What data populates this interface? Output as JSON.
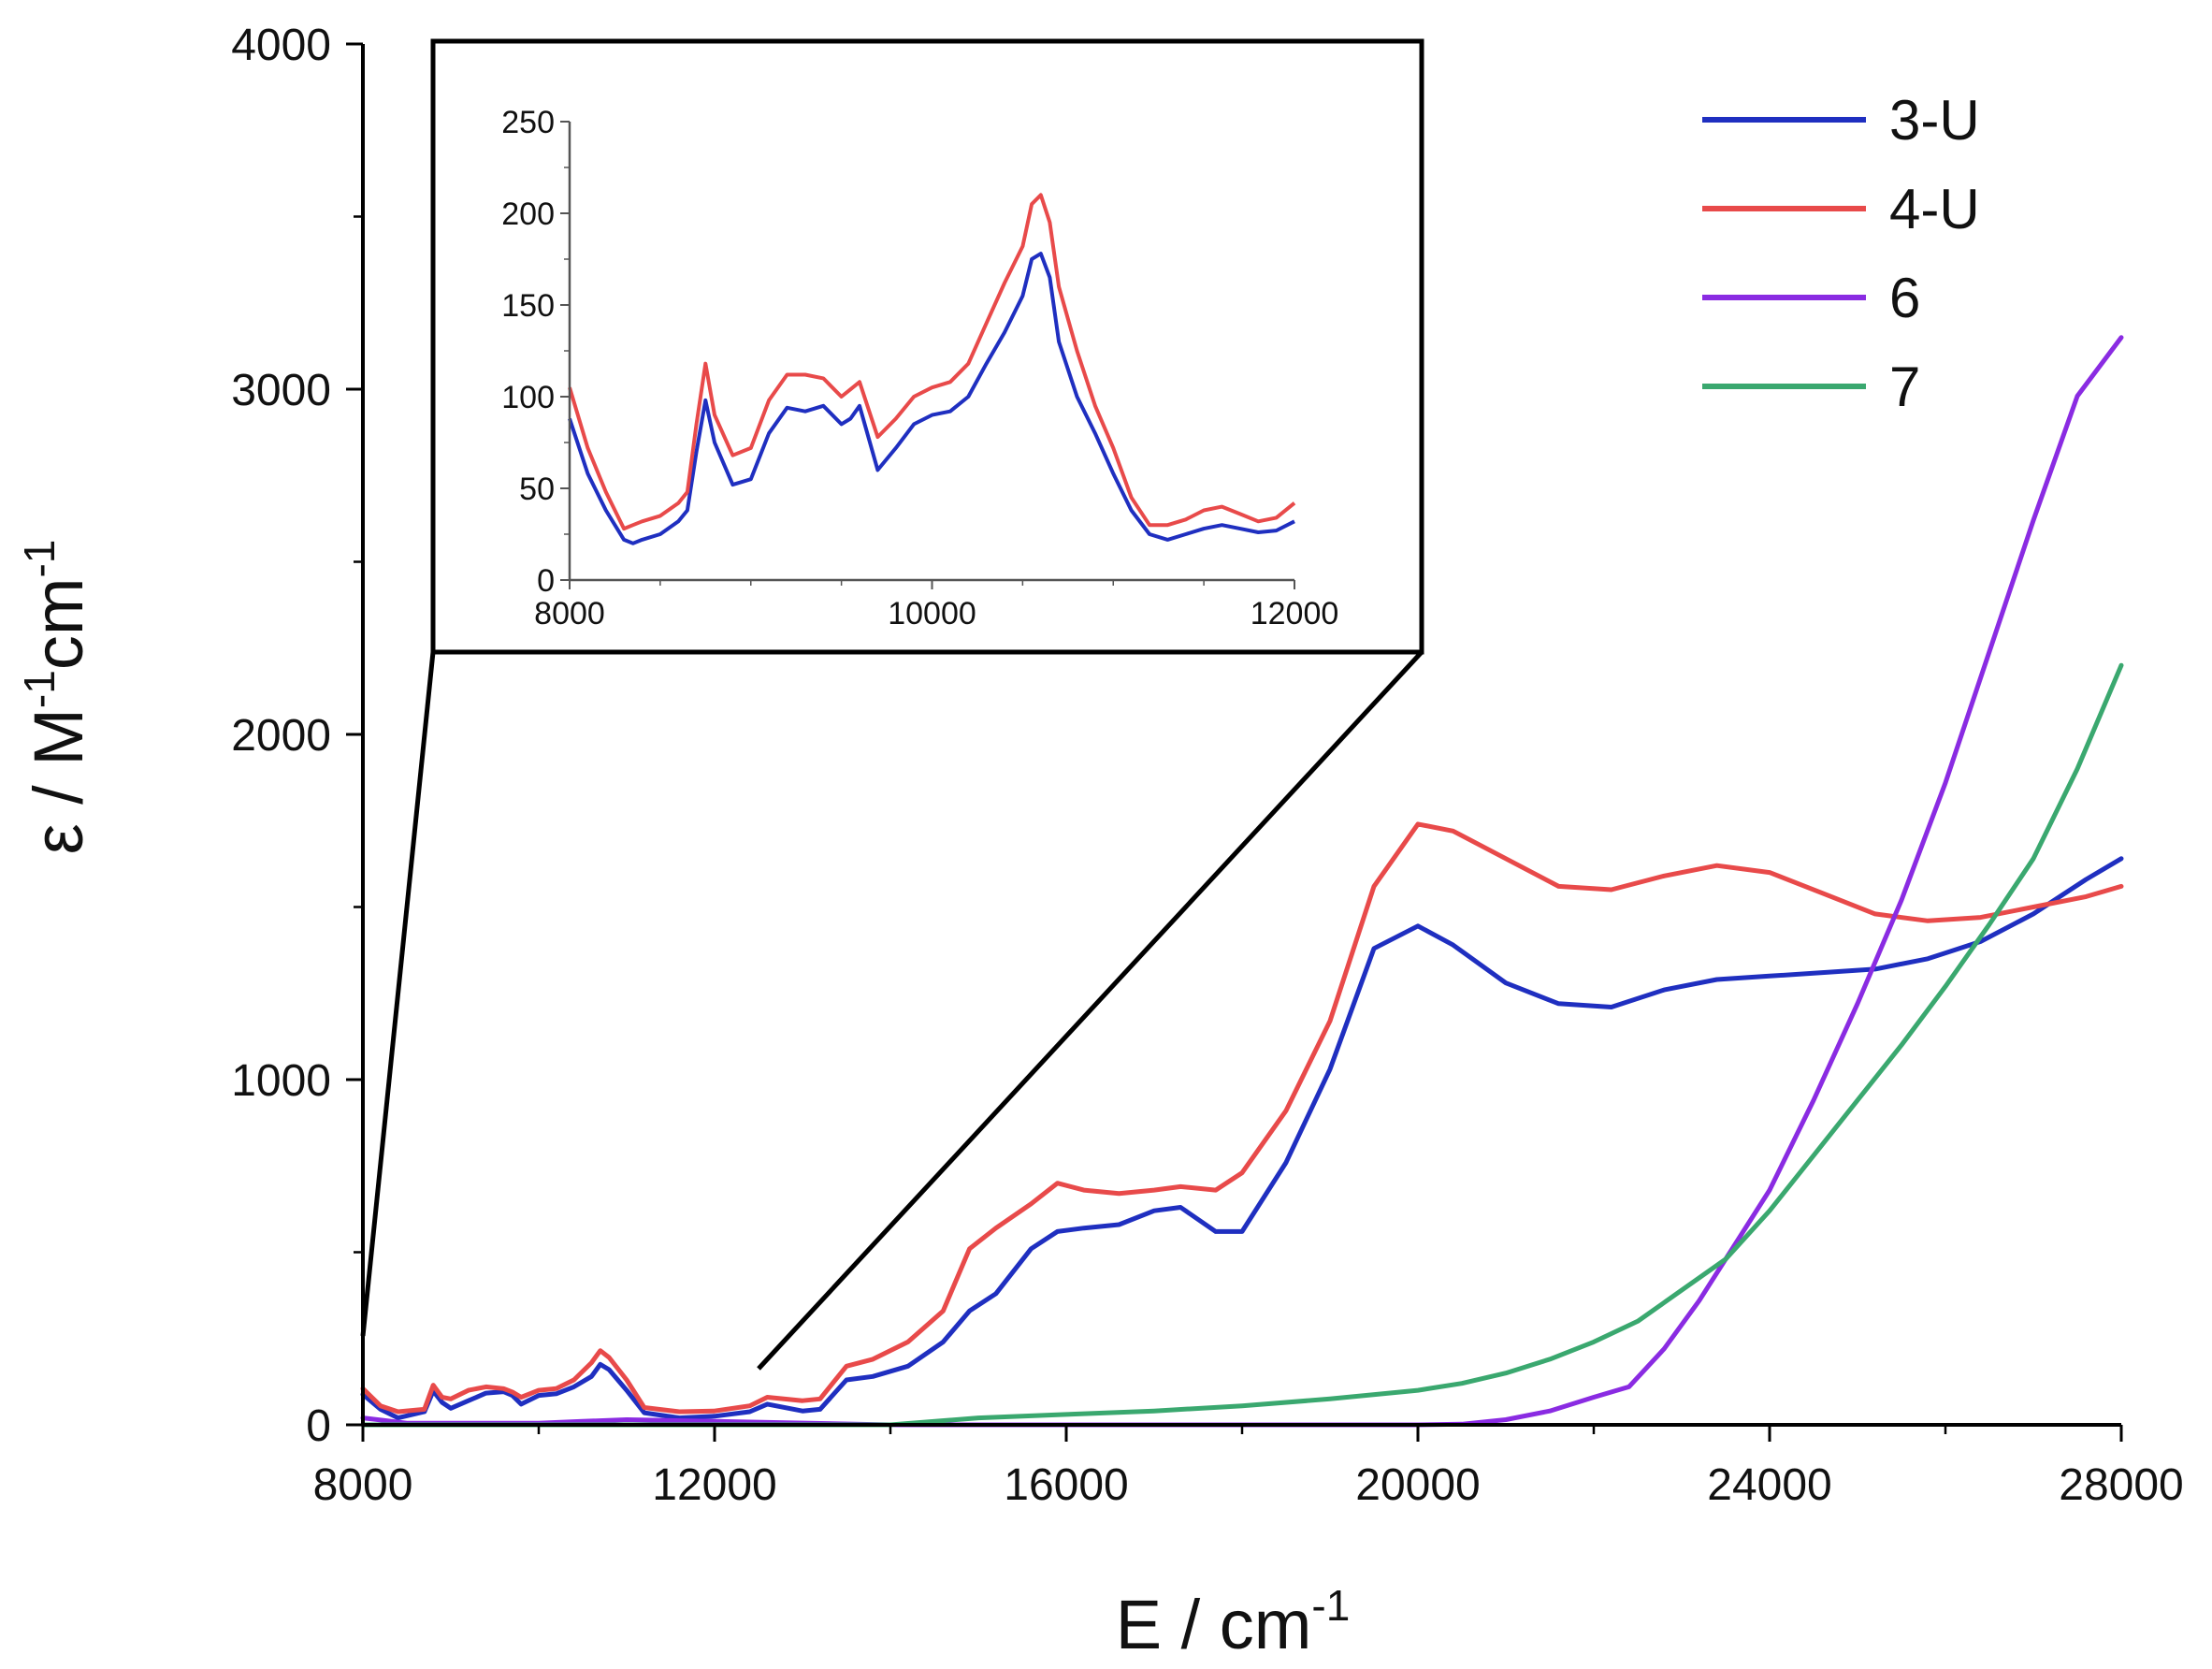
{
  "chart_data": [
    {
      "type": "line",
      "xlabel": "E / cm",
      "xlabel_sup": "-1",
      "ylabel_parts": [
        "ε / M",
        "-1",
        "cm",
        "-1"
      ],
      "xlim": [
        8000,
        28000
      ],
      "ylim": [
        0,
        4000
      ],
      "xticks": [
        8000,
        12000,
        16000,
        20000,
        24000,
        28000
      ],
      "yticks": [
        0,
        1000,
        2000,
        3000,
        4000
      ],
      "legend_position": "top-right",
      "series": [
        {
          "name": "3-U",
          "color": "#1f2fc0",
          "x": [
            8000,
            8200,
            8400,
            8700,
            8800,
            8900,
            9000,
            9200,
            9400,
            9600,
            9700,
            9800,
            10000,
            10200,
            10400,
            10600,
            10700,
            10800,
            11000,
            11200,
            11600,
            12000,
            12400,
            12600,
            13000,
            13200,
            13500,
            13800,
            14200,
            14600,
            14900,
            15200,
            15600,
            15900,
            16200,
            16600,
            17000,
            17300,
            17700,
            18000,
            18500,
            19000,
            19500,
            20000,
            20400,
            21000,
            21600,
            22200,
            22800,
            23400,
            24000,
            24600,
            25200,
            25800,
            26400,
            27000,
            27600,
            28000
          ],
          "y": [
            88,
            45,
            20,
            38,
            98,
            65,
            48,
            70,
            92,
            96,
            85,
            60,
            85,
            90,
            110,
            140,
            175,
            160,
            100,
            35,
            20,
            25,
            38,
            60,
            40,
            45,
            130,
            140,
            170,
            240,
            330,
            380,
            510,
            560,
            570,
            580,
            620,
            630,
            560,
            560,
            760,
            1030,
            1380,
            1445,
            1390,
            1280,
            1220,
            1210,
            1260,
            1290,
            1300,
            1310,
            1320,
            1350,
            1400,
            1480,
            1580,
            1640
          ]
        },
        {
          "name": "4-U",
          "color": "#e84a4a",
          "x": [
            8000,
            8200,
            8400,
            8700,
            8800,
            8900,
            9000,
            9200,
            9400,
            9600,
            9700,
            9800,
            10000,
            10200,
            10400,
            10600,
            10700,
            10800,
            11000,
            11200,
            11600,
            12000,
            12400,
            12600,
            13000,
            13200,
            13500,
            13800,
            14200,
            14600,
            14900,
            15200,
            15600,
            15900,
            16200,
            16600,
            17000,
            17300,
            17700,
            18000,
            18500,
            19000,
            19500,
            20000,
            20400,
            21000,
            21600,
            22200,
            22800,
            23400,
            24000,
            24600,
            25200,
            25800,
            26400,
            27000,
            27600,
            28000
          ],
          "y": [
            105,
            55,
            38,
            45,
            115,
            80,
            75,
            100,
            110,
            105,
            95,
            80,
            100,
            105,
            130,
            180,
            215,
            195,
            130,
            50,
            38,
            40,
            55,
            80,
            70,
            75,
            170,
            190,
            240,
            330,
            510,
            570,
            640,
            700,
            680,
            670,
            680,
            690,
            680,
            730,
            910,
            1170,
            1560,
            1740,
            1720,
            1640,
            1560,
            1550,
            1590,
            1620,
            1600,
            1540,
            1480,
            1460,
            1470,
            1500,
            1530,
            1560
          ]
        },
        {
          "name": "6",
          "color": "#8a2be2",
          "x": [
            8000,
            8500,
            9000,
            10000,
            10500,
            11000,
            12000,
            14000,
            16000,
            18000,
            19000,
            20000,
            20500,
            21000,
            21500,
            22000,
            22400,
            22800,
            23200,
            23600,
            24000,
            24500,
            25000,
            25500,
            26000,
            26500,
            27000,
            27500,
            28000
          ],
          "y": [
            20,
            5,
            5,
            5,
            10,
            15,
            10,
            0,
            0,
            0,
            0,
            0,
            2,
            15,
            40,
            80,
            110,
            220,
            360,
            520,
            680,
            940,
            1220,
            1520,
            1860,
            2240,
            2620,
            2980,
            3150
          ]
        },
        {
          "name": "7",
          "color": "#3aa86f",
          "x": [
            8000,
            10000,
            12000,
            14000,
            15000,
            16000,
            17000,
            18000,
            19000,
            20000,
            20500,
            21000,
            21500,
            22000,
            22500,
            23000,
            23500,
            24000,
            24500,
            25000,
            25500,
            26000,
            26500,
            27000,
            27500,
            28000
          ],
          "y": [
            0,
            0,
            0,
            0,
            20,
            30,
            40,
            55,
            75,
            100,
            120,
            150,
            190,
            240,
            300,
            390,
            480,
            620,
            780,
            940,
            1100,
            1270,
            1450,
            1640,
            1900,
            2200
          ]
        }
      ]
    },
    {
      "type": "line",
      "xlim": [
        8000,
        12000
      ],
      "ylim": [
        0,
        250
      ],
      "xticks": [
        8000,
        10000,
        12000
      ],
      "yticks": [
        0,
        50,
        100,
        150,
        200,
        250
      ],
      "series": [
        {
          "name": "3-U",
          "color": "#1f2fc0",
          "x": [
            8000,
            8100,
            8200,
            8300,
            8350,
            8400,
            8500,
            8600,
            8650,
            8700,
            8750,
            8800,
            8900,
            9000,
            9100,
            9200,
            9300,
            9400,
            9500,
            9550,
            9600,
            9700,
            9800,
            9900,
            10000,
            10100,
            10200,
            10300,
            10400,
            10500,
            10550,
            10600,
            10650,
            10700,
            10800,
            10900,
            11000,
            11100,
            11200,
            11300,
            11400,
            11500,
            11600,
            11700,
            11800,
            11900,
            12000
          ],
          "y": [
            88,
            58,
            38,
            22,
            20,
            22,
            25,
            32,
            38,
            70,
            98,
            75,
            52,
            55,
            80,
            94,
            92,
            95,
            85,
            88,
            95,
            60,
            72,
            85,
            90,
            92,
            100,
            118,
            135,
            155,
            175,
            178,
            165,
            130,
            100,
            80,
            58,
            38,
            25,
            22,
            25,
            28,
            30,
            28,
            26,
            27,
            32
          ]
        },
        {
          "name": "4-U",
          "color": "#e84a4a",
          "x": [
            8000,
            8100,
            8200,
            8300,
            8350,
            8400,
            8500,
            8600,
            8650,
            8700,
            8750,
            8800,
            8900,
            9000,
            9100,
            9200,
            9300,
            9400,
            9500,
            9550,
            9600,
            9700,
            9800,
            9900,
            10000,
            10100,
            10200,
            10300,
            10400,
            10500,
            10550,
            10600,
            10650,
            10700,
            10800,
            10900,
            11000,
            11100,
            11200,
            11300,
            11400,
            11500,
            11600,
            11700,
            11800,
            11900,
            12000
          ],
          "y": [
            105,
            72,
            48,
            28,
            30,
            32,
            35,
            42,
            48,
            85,
            118,
            90,
            68,
            72,
            98,
            112,
            112,
            110,
            100,
            104,
            108,
            78,
            88,
            100,
            105,
            108,
            118,
            140,
            162,
            182,
            205,
            210,
            195,
            160,
            125,
            95,
            72,
            45,
            30,
            30,
            33,
            38,
            40,
            36,
            32,
            34,
            42
          ]
        }
      ]
    }
  ],
  "legend": [
    {
      "label": "3-U",
      "color": "#1f2fc0"
    },
    {
      "label": "4-U",
      "color": "#e84a4a"
    },
    {
      "label": "6",
      "color": "#8a2be2"
    },
    {
      "label": "7",
      "color": "#3aa86f"
    }
  ]
}
